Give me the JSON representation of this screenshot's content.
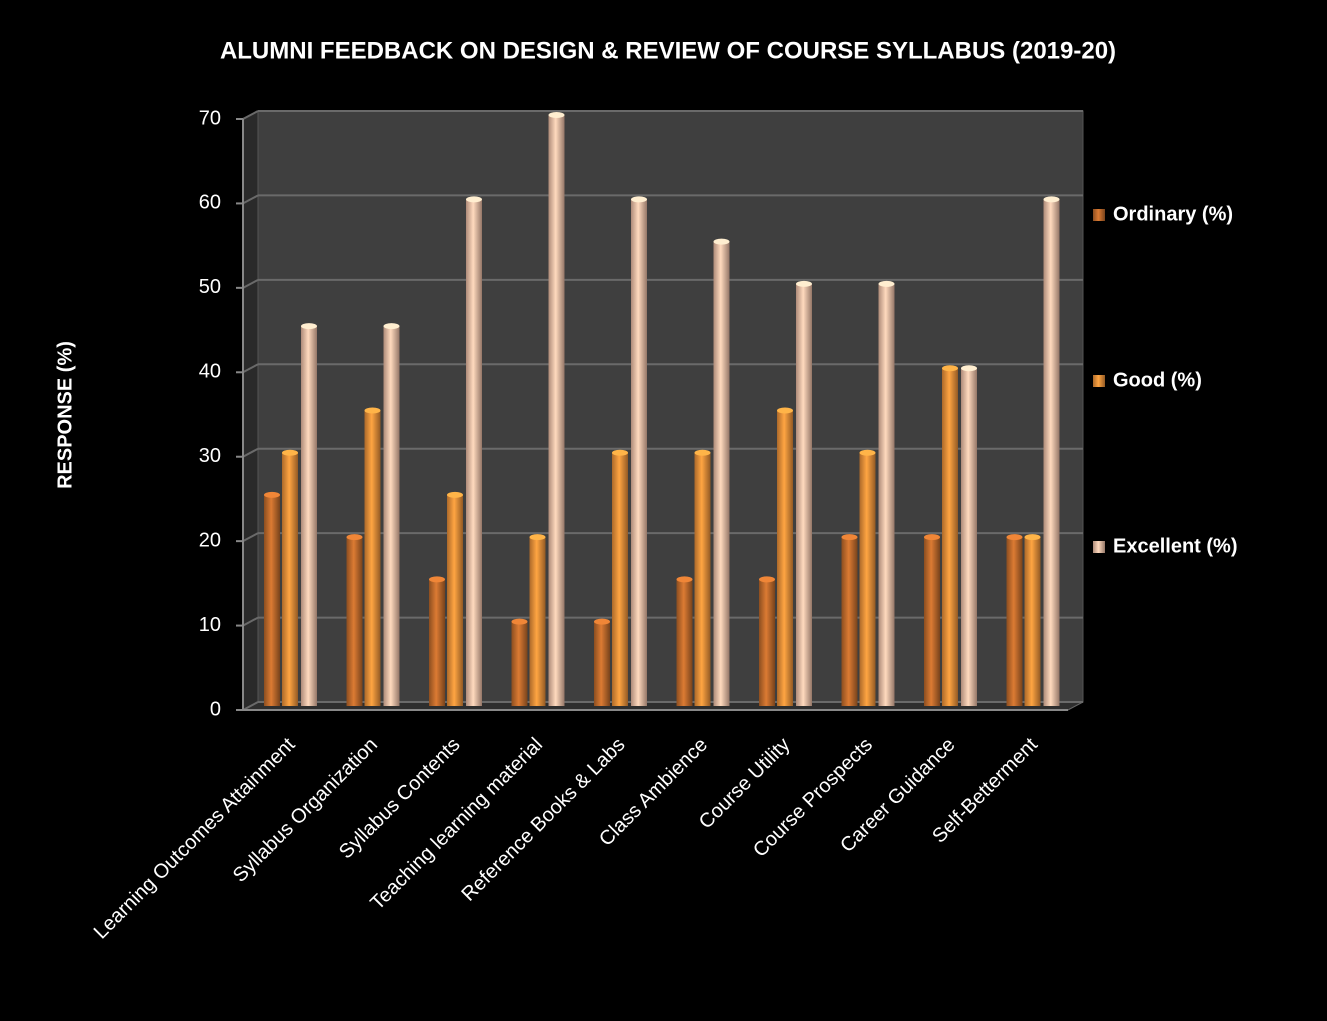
{
  "chart_data": {
    "type": "bar",
    "title": "ALUMNI FEEDBACK ON DESIGN & REVIEW OF COURSE SYLLABUS (2019-20)",
    "y_label": "RESPONSE (%)",
    "categories": [
      "Learning Outcomes Attainment",
      "Syllabus Organization",
      "Syllabus Contents",
      "Teaching learning material",
      "Reference Books & Labs",
      "Class Ambience",
      "Course Utility",
      "Course Prospects",
      "Career Guidance",
      "Self-Betterment"
    ],
    "series": [
      {
        "name": "Ordinary (%)",
        "color": "#c8702e",
        "values": [
          25,
          20,
          15,
          10,
          10,
          15,
          15,
          20,
          20,
          20
        ]
      },
      {
        "name": "Good (%)",
        "color": "#f5963c",
        "values": [
          30,
          35,
          25,
          20,
          30,
          30,
          35,
          30,
          40,
          20
        ]
      },
      {
        "name": "Excellent (%)",
        "color": "#f8c6ad",
        "values": [
          45,
          45,
          60,
          70,
          60,
          55,
          50,
          50,
          40,
          60
        ]
      }
    ],
    "ylim": [
      0,
      70
    ],
    "yticks": [
      0,
      10,
      20,
      30,
      40,
      50,
      60,
      70
    ],
    "grid": true,
    "legend": "right"
  }
}
